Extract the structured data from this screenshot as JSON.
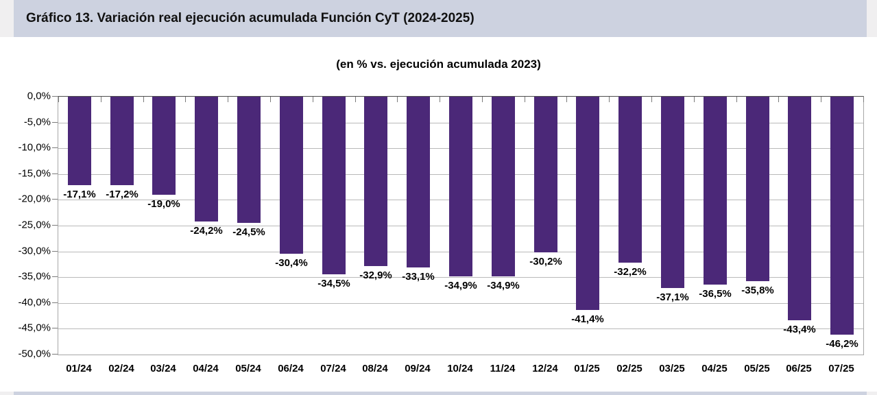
{
  "page": {
    "title": "Gráfico 13. Variación real ejecución acumulada Función CyT (2024-2025)",
    "subtitle": "(en % vs. ejecución acumulada 2023)"
  },
  "colors": {
    "bar": "#4B2878",
    "title_band_background": "#CDD2E0",
    "page_margin": "#F0EFF0",
    "gridline": "#B9B9B9",
    "plot_border": "#A6A6A6",
    "zero_axis_line": "#4d4d4d",
    "text": "#000000"
  },
  "chart_data": {
    "type": "bar",
    "title": "(en % vs. ejecución acumulada 2023)",
    "categories": [
      "01/24",
      "02/24",
      "03/24",
      "04/24",
      "05/24",
      "06/24",
      "07/24",
      "08/24",
      "09/24",
      "10/24",
      "11/24",
      "12/24",
      "01/25",
      "02/25",
      "03/25",
      "04/25",
      "05/25",
      "06/25",
      "07/25"
    ],
    "values": [
      -17.1,
      -17.2,
      -19.0,
      -24.2,
      -24.5,
      -30.4,
      -34.5,
      -32.9,
      -33.1,
      -34.9,
      -34.9,
      -30.2,
      -41.4,
      -32.2,
      -37.1,
      -36.5,
      -35.8,
      -43.4,
      -46.2
    ],
    "data_labels": [
      "-17,1%",
      "-17,2%",
      "-19,0%",
      "-24,2%",
      "-24,5%",
      "-30,4%",
      "-34,5%",
      "-32,9%",
      "-33,1%",
      "-34,9%",
      "-34,9%",
      "-30,2%",
      "-41,4%",
      "-32,2%",
      "-37,1%",
      "-36,5%",
      "-35,8%",
      "-43,4%",
      "-46,2%"
    ],
    "y_tick_labels": [
      "0,0%",
      "-5,0%",
      "-10,0%",
      "-15,0%",
      "-20,0%",
      "-25,0%",
      "-30,0%",
      "-35,0%",
      "-40,0%",
      "-45,0%",
      "-50,0%"
    ],
    "xlabel": "",
    "ylabel": "",
    "ylim": [
      -50,
      0
    ],
    "grid": true,
    "legend": false,
    "bar_label_position": "outside-end-below"
  }
}
